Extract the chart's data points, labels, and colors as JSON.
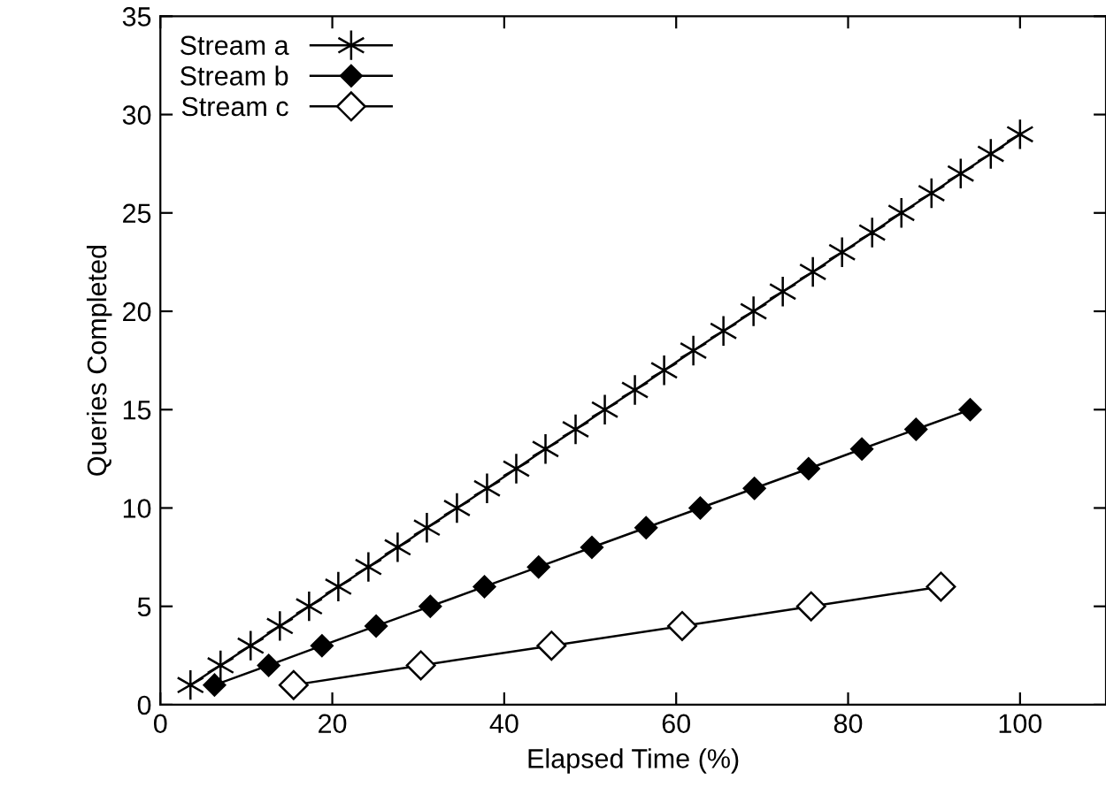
{
  "chart_data": {
    "type": "line",
    "xlabel": "Elapsed Time (%)",
    "ylabel": "Queries Completed",
    "xlim": [
      0,
      110
    ],
    "xticks": [
      0,
      20,
      40,
      60,
      80,
      100
    ],
    "ylim": [
      0,
      35
    ],
    "yticks": [
      0,
      5,
      10,
      15,
      20,
      25,
      30,
      35
    ],
    "grid": false,
    "legend": "top left",
    "line_style": "solid",
    "series": [
      {
        "name": "Stream a",
        "color": "#000000",
        "marker": "cross",
        "x": [
          3.5,
          7,
          10.5,
          13.9,
          17.3,
          20.7,
          24.2,
          27.6,
          31,
          34.5,
          38,
          41.4,
          44.8,
          48.3,
          51.7,
          55.2,
          58.6,
          62,
          65.5,
          69,
          72.4,
          75.9,
          79.3,
          82.8,
          86.2,
          89.7,
          93.1,
          96.6,
          100
        ],
        "values": [
          1,
          2,
          3,
          4,
          5,
          6,
          7,
          8,
          9,
          10,
          11,
          12,
          13,
          14,
          15,
          16,
          17,
          18,
          19,
          20,
          21,
          22,
          23,
          24,
          25,
          26,
          27,
          28,
          29
        ]
      },
      {
        "name": "Stream b",
        "color": "#000000",
        "marker": "diamond",
        "x": [
          6.3,
          12.6,
          18.8,
          25.1,
          31.4,
          37.7,
          44,
          50.2,
          56.5,
          62.8,
          69.1,
          75.4,
          81.6,
          87.9,
          94.2
        ],
        "values": [
          1,
          2,
          3,
          4,
          5,
          6,
          7,
          8,
          9,
          10,
          11,
          12,
          13,
          14,
          15
        ]
      },
      {
        "name": "Stream c",
        "color": "#000000",
        "marker": "diamond_open",
        "x": [
          15.5,
          30.3,
          45.5,
          60.7,
          75.7,
          90.8
        ],
        "values": [
          1,
          2,
          3,
          4,
          5,
          6
        ]
      }
    ]
  }
}
